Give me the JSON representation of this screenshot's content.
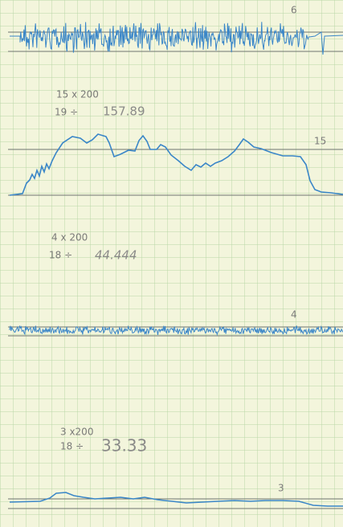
{
  "traces": [
    {
      "label": "6"
    },
    {
      "label": "15"
    },
    {
      "label": "4"
    },
    {
      "label": "3"
    }
  ],
  "notes": [
    {
      "line1": "15 x 200",
      "line2_prefix": "19 ÷",
      "line2_result": "157.89"
    },
    {
      "line1": "4 x 200",
      "line2_prefix": "18 ÷",
      "line2_result": "44.444"
    },
    {
      "line1": "3 x200",
      "line2_prefix": "18 ÷",
      "line2_result": "33.33"
    }
  ]
}
